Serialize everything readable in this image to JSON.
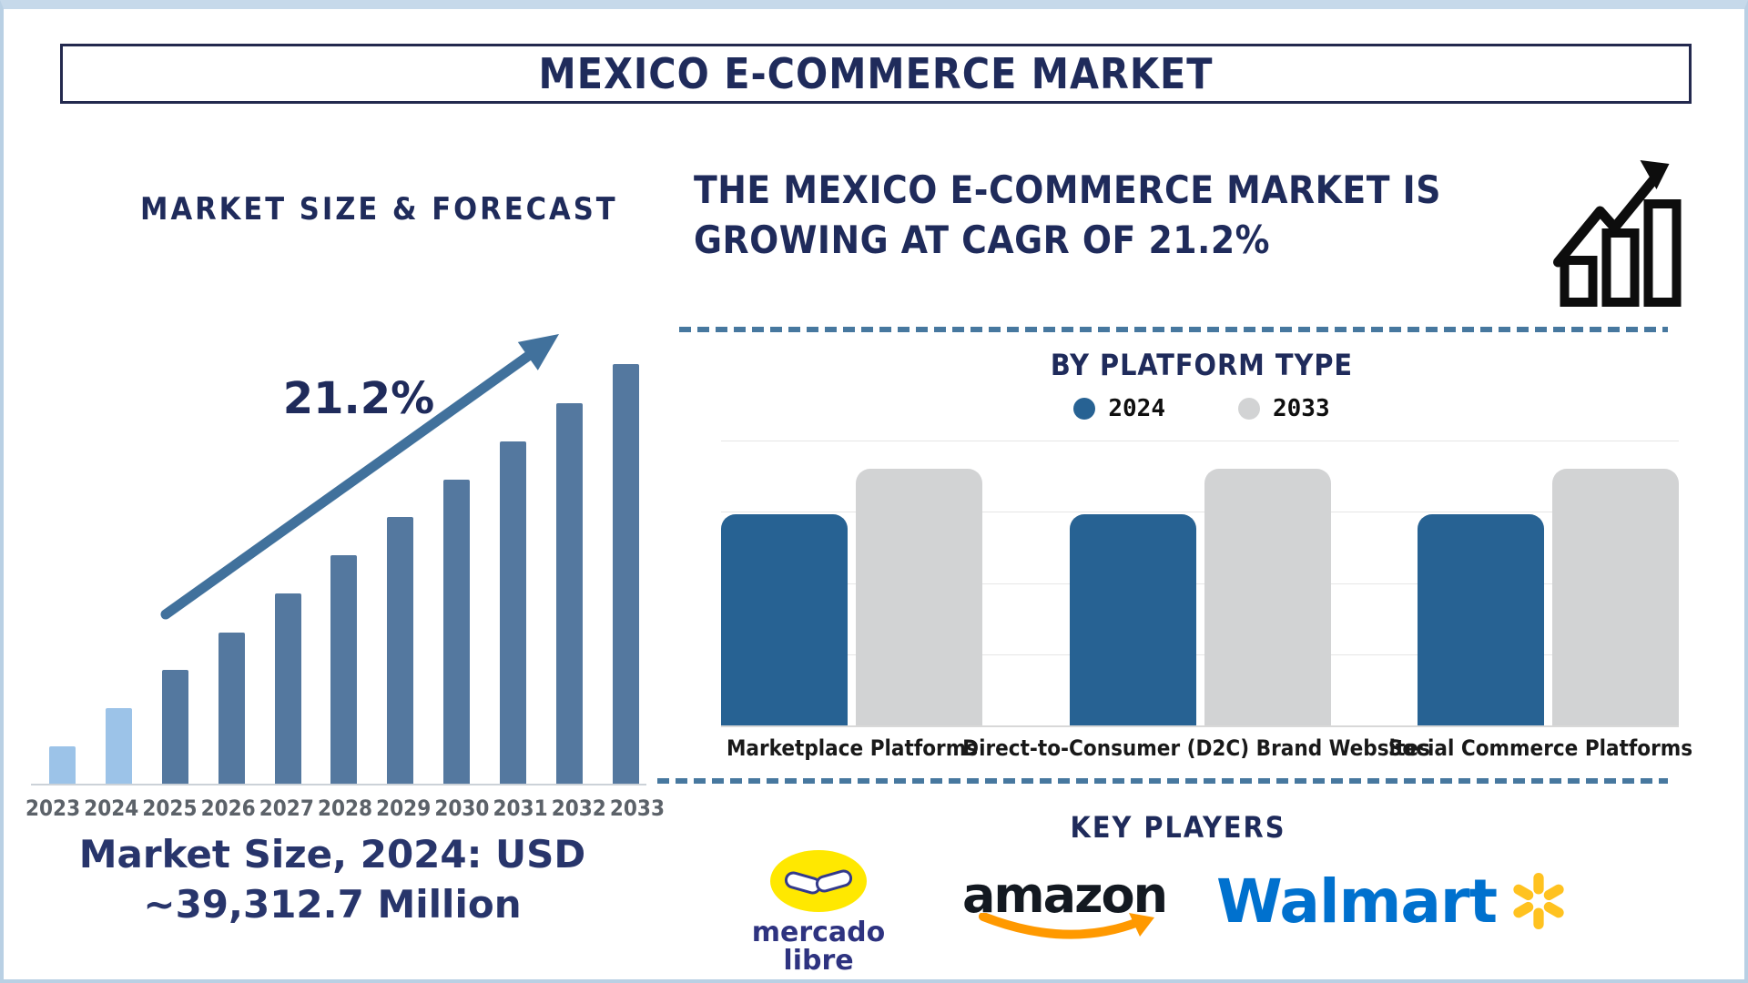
{
  "title": "MEXICO E-COMMERCE MARKET",
  "colors": {
    "navy": "#1f2b5b",
    "steel_blue": "#54789f",
    "light_blue": "#9cc3e8",
    "arrow_blue": "#41719c",
    "platform_blue": "#276293",
    "platform_gray": "#d2d3d4",
    "dash_blue": "#47789f",
    "frame_border_blue": "#b9d0e4",
    "year_label_gray": "#5c6269",
    "amazon_black": "#131921",
    "amazon_orange": "#ff9900",
    "walmart_blue": "#0071ce",
    "walmart_yellow": "#ffc220",
    "mercado_yellow": "#ffe800",
    "mercado_navy": "#2e3380"
  },
  "forecast": {
    "heading": "MARKET SIZE & FORECAST",
    "cagr_label": "21.2%",
    "caption_line1": "Market Size, 2024: USD",
    "caption_line2": "~39,312.7 Million"
  },
  "growth": {
    "line1": "THE MEXICO E-COMMERCE MARKET IS",
    "line2": "GROWING AT CAGR OF 21.2%"
  },
  "platform": {
    "title": "BY PLATFORM TYPE"
  },
  "key_players": {
    "heading": "KEY PLAYERS",
    "mercado_line1": "mercado",
    "mercado_line2": "libre",
    "amazon_text": "amazon",
    "walmart_text": "Walmart"
  },
  "chart_data": [
    {
      "type": "bar",
      "title": "MARKET SIZE & FORECAST",
      "categories": [
        "2023",
        "2024",
        "2025",
        "2026",
        "2027",
        "2028",
        "2029",
        "2030",
        "2031",
        "2032",
        "2033"
      ],
      "values_pct_of_max": [
        8.9,
        18.0,
        27.1,
        36.0,
        45.3,
        54.4,
        63.6,
        72.5,
        81.6,
        90.7,
        100
      ],
      "bar_colors": [
        "#9cc3e8",
        "#9cc3e8",
        "#54789f",
        "#54789f",
        "#54789f",
        "#54789f",
        "#54789f",
        "#54789f",
        "#54789f",
        "#54789f",
        "#54789f"
      ],
      "annotation": "21.2%",
      "note": "Market Size, 2024: USD ~39,312.7 Million",
      "xlabel": "",
      "ylabel": "",
      "grid": false,
      "value_axis": "not shown; heights estimated as % of tallest bar (2033)"
    },
    {
      "type": "bar",
      "title": "BY PLATFORM TYPE",
      "categories": [
        "Marketplace Platforms",
        "Direct-to-Consumer (D2C) Brand Websites",
        "Social Commerce Platforms"
      ],
      "series": [
        {
          "name": "2024",
          "color": "#276293",
          "values_pct_of_plot": [
            74,
            74,
            74
          ]
        },
        {
          "name": "2033",
          "color": "#d2d3d4",
          "values_pct_of_plot": [
            90,
            90,
            90
          ]
        }
      ],
      "grid": true,
      "gridlines": 5,
      "legend_position": "top",
      "value_axis": "not shown; heights estimated as % of plot height"
    }
  ]
}
